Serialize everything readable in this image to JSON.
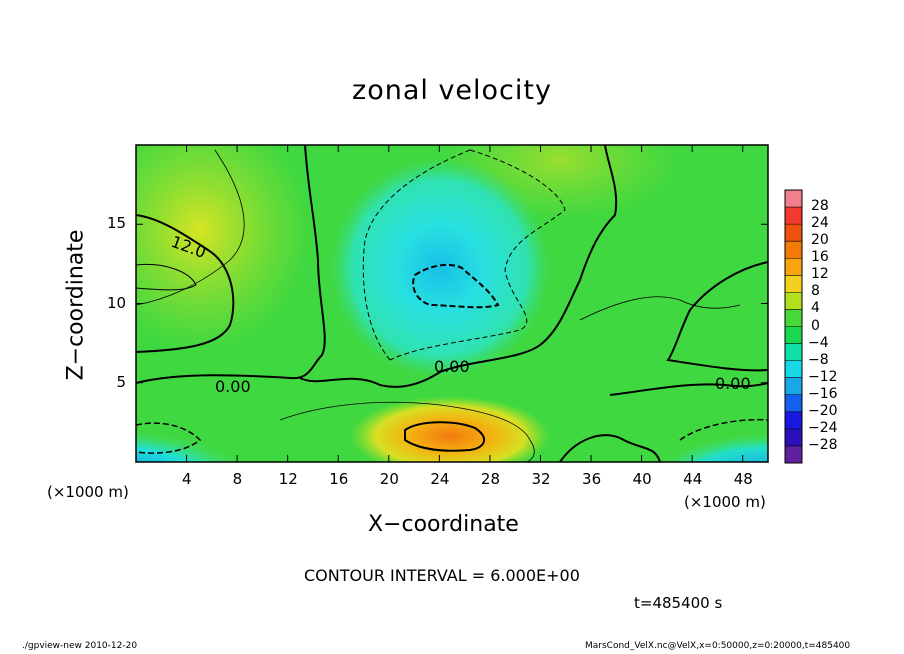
{
  "chart_data": {
    "type": "heatmap",
    "title": "zonal velocity",
    "xlabel": "X−coordinate",
    "ylabel": "Z−coordinate",
    "x_unit_label": "(×1000 m)",
    "xlim": [
      0,
      50
    ],
    "ylim": [
      0,
      20
    ],
    "x_ticks": [
      "4",
      "8",
      "12",
      "16",
      "20",
      "24",
      "28",
      "32",
      "36",
      "40",
      "44",
      "48"
    ],
    "y_ticks": [
      "5",
      "10",
      "15"
    ],
    "colorbar": {
      "labels": [
        "28",
        "24",
        "20",
        "16",
        "12",
        "8",
        "4",
        "0",
        "−4",
        "−8",
        "−12",
        "−16",
        "−20",
        "−24",
        "−28"
      ],
      "colors": [
        "#f27f8e",
        "#f23a2e",
        "#f05010",
        "#f47a08",
        "#f8a410",
        "#f2d020",
        "#b0e020",
        "#48d838",
        "#18d850",
        "#10e0a8",
        "#18d8e8",
        "#18a8e8",
        "#1460f0",
        "#1818e0",
        "#2a10b8",
        "#60209c"
      ]
    },
    "contour_labels": [
      "12.0",
      "0.00",
      "0.00",
      "0.00"
    ],
    "contour_interval": "CONTOUR INTERVAL = 6.000E+00",
    "time": "t=485400  s"
  },
  "footer": {
    "left": "./gpview-new  2010-12-20",
    "right": "MarsCond_VelX.nc@VelX,x=0:50000,z=0:20000,t=485400"
  }
}
